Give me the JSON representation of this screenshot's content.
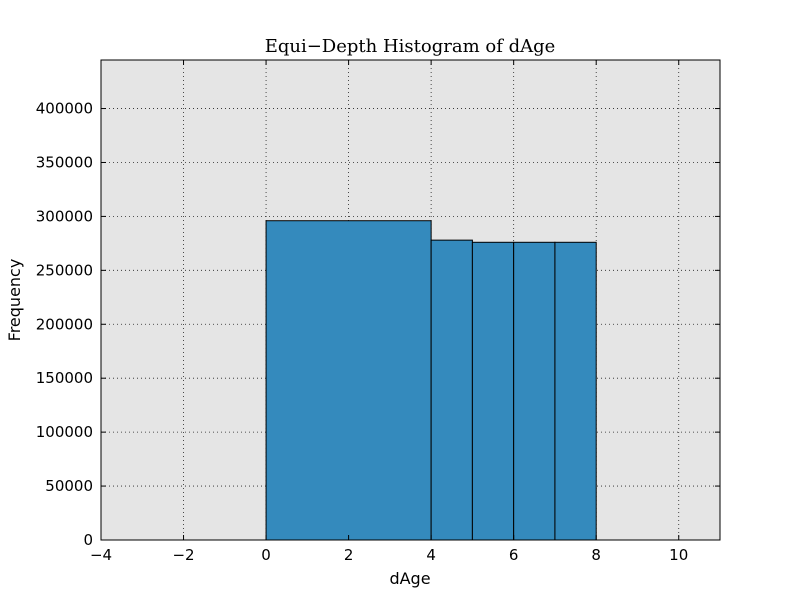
{
  "chart_data": {
    "type": "bar",
    "title": "Equi−Depth Histogram of dAge",
    "xlabel": "dAge",
    "ylabel": "Frequency",
    "xlim": [
      -4,
      11
    ],
    "ylim": [
      0,
      445000
    ],
    "xticks": [
      -4,
      -2,
      0,
      2,
      4,
      6,
      8,
      10
    ],
    "xtick_labels": [
      "−4",
      "−2",
      "0",
      "2",
      "4",
      "6",
      "8",
      "10"
    ],
    "yticks": [
      0,
      50000,
      100000,
      150000,
      200000,
      250000,
      300000,
      350000,
      400000
    ],
    "ytick_labels": [
      "0",
      "50000",
      "100000",
      "150000",
      "200000",
      "250000",
      "300000",
      "350000",
      "400000"
    ],
    "grid": true,
    "bins": [
      {
        "x0": 0,
        "x1": 4,
        "value": 296000
      },
      {
        "x0": 4,
        "x1": 5,
        "value": 278000
      },
      {
        "x0": 5,
        "x1": 6,
        "value": 276000
      },
      {
        "x0": 6,
        "x1": 7,
        "value": 276000
      },
      {
        "x0": 7,
        "x1": 8,
        "value": 276000
      }
    ],
    "bar_color": "#348abd",
    "background_color": "#e5e5e5"
  }
}
